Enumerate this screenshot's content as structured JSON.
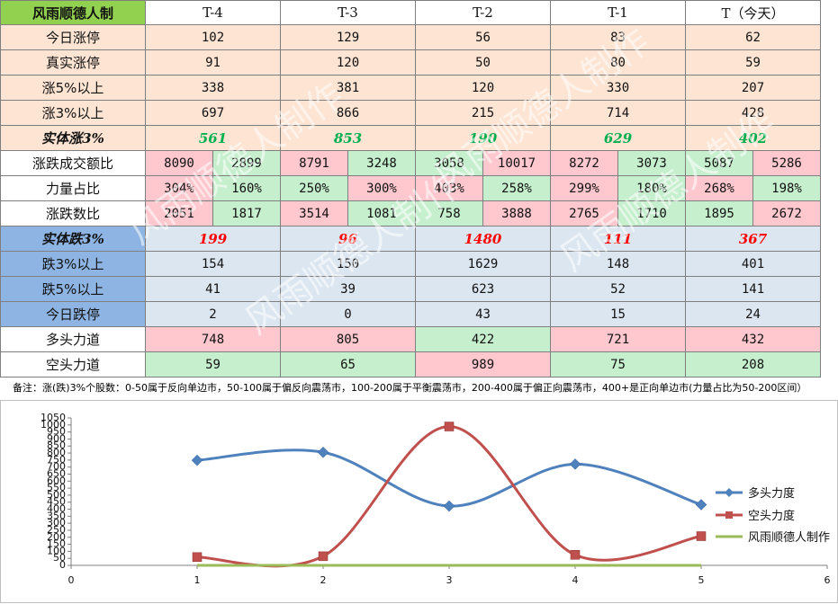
{
  "brand": "风雨顺德人制",
  "columns": [
    "T-4",
    "T-3",
    "T-2",
    "T-1",
    "T（今天）"
  ],
  "rows": [
    {
      "label": "今日涨停",
      "values": [
        "102",
        "129",
        "56",
        "83",
        "62"
      ],
      "kind": "up"
    },
    {
      "label": "真实涨停",
      "values": [
        "91",
        "120",
        "50",
        "80",
        "59"
      ],
      "kind": "up"
    },
    {
      "label": "涨5%以上",
      "values": [
        "338",
        "381",
        "120",
        "330",
        "207"
      ],
      "kind": "up"
    },
    {
      "label": "涨3%以上",
      "values": [
        "697",
        "866",
        "215",
        "714",
        "428"
      ],
      "kind": "up"
    },
    {
      "label": "实体涨3%",
      "values": [
        "561",
        "853",
        "190",
        "629",
        "402"
      ],
      "kind": "upbold"
    }
  ],
  "split_rows": [
    {
      "label": "涨跌成交额比",
      "values": [
        [
          "8090",
          "2899"
        ],
        [
          "8791",
          "3248"
        ],
        [
          "3058",
          "10017"
        ],
        [
          "8272",
          "3073"
        ],
        [
          "5087",
          "5286"
        ]
      ]
    },
    {
      "label": "力量占比",
      "values": [
        [
          "304%",
          "160%"
        ],
        [
          "250%",
          "300%"
        ],
        [
          "403%",
          "258%"
        ],
        [
          "299%",
          "180%"
        ],
        [
          "268%",
          "198%"
        ]
      ]
    },
    {
      "label": "涨跌数比",
      "values": [
        [
          "2051",
          "1817"
        ],
        [
          "3514",
          "1081"
        ],
        [
          "758",
          "3888"
        ],
        [
          "2765",
          "1710"
        ],
        [
          "1895",
          "2672"
        ]
      ]
    }
  ],
  "down_rows": [
    {
      "label": "实体跌3%",
      "values": [
        "199",
        "96",
        "1480",
        "111",
        "367"
      ],
      "kind": "downbold"
    },
    {
      "label": "跌3%以上",
      "values": [
        "154",
        "150",
        "1629",
        "148",
        "401"
      ],
      "kind": "down"
    },
    {
      "label": "跌5%以上",
      "values": [
        "41",
        "39",
        "623",
        "52",
        "141"
      ],
      "kind": "down"
    },
    {
      "label": "今日跌停",
      "values": [
        "2",
        "0",
        "43",
        "15",
        "24"
      ],
      "kind": "down"
    }
  ],
  "power_rows": [
    {
      "label": "多头力道",
      "values": [
        "748",
        "805",
        "422",
        "721",
        "432"
      ]
    },
    {
      "label": "空头力道",
      "values": [
        "59",
        "65",
        "989",
        "75",
        "208"
      ]
    }
  ],
  "note": "备注：涨(跌)3%个股数：0-50属于反向单边市，50-100属于偏反向震荡市，100-200属于平衡震荡市，200-400属于偏正向震荡市，400+是正向单边市(力量占比为50-200区间）",
  "watermark": "风雨顺德人制作",
  "colors": {
    "peach": "#fde4d3",
    "blue_bg": "#dce6f1",
    "blue_label": "#8db4e2",
    "pink": "#ffc7ce",
    "green": "#c6efce",
    "brand_green": "#92d050",
    "up_bold_text": "#00b050",
    "down_bold_text": "#ff0000",
    "series_bull": "#4f81bd",
    "series_bear": "#c0504d",
    "series_third": "#9bbb59"
  },
  "chart_data": {
    "type": "line",
    "x": [
      1,
      2,
      3,
      4,
      5
    ],
    "xlim": [
      0,
      6
    ],
    "ylim": [
      0,
      1050
    ],
    "xticks": [
      0,
      1,
      2,
      3,
      4,
      5,
      6
    ],
    "yticks": [
      0,
      50,
      100,
      150,
      200,
      250,
      300,
      350,
      400,
      450,
      500,
      550,
      600,
      650,
      700,
      750,
      800,
      850,
      900,
      950,
      1000,
      1050
    ],
    "smooth": true,
    "series": [
      {
        "name": "多头力度",
        "values": [
          748,
          805,
          422,
          721,
          432
        ],
        "color": "#4f81bd",
        "marker": "diamond"
      },
      {
        "name": "空头力度",
        "values": [
          59,
          65,
          989,
          75,
          208
        ],
        "color": "#c0504d",
        "marker": "square"
      },
      {
        "name": "风雨顺德人制作",
        "values": [
          0,
          0,
          0,
          0,
          0
        ],
        "color": "#9bbb59",
        "marker": "none"
      }
    ],
    "legend": "right",
    "grid": false
  }
}
